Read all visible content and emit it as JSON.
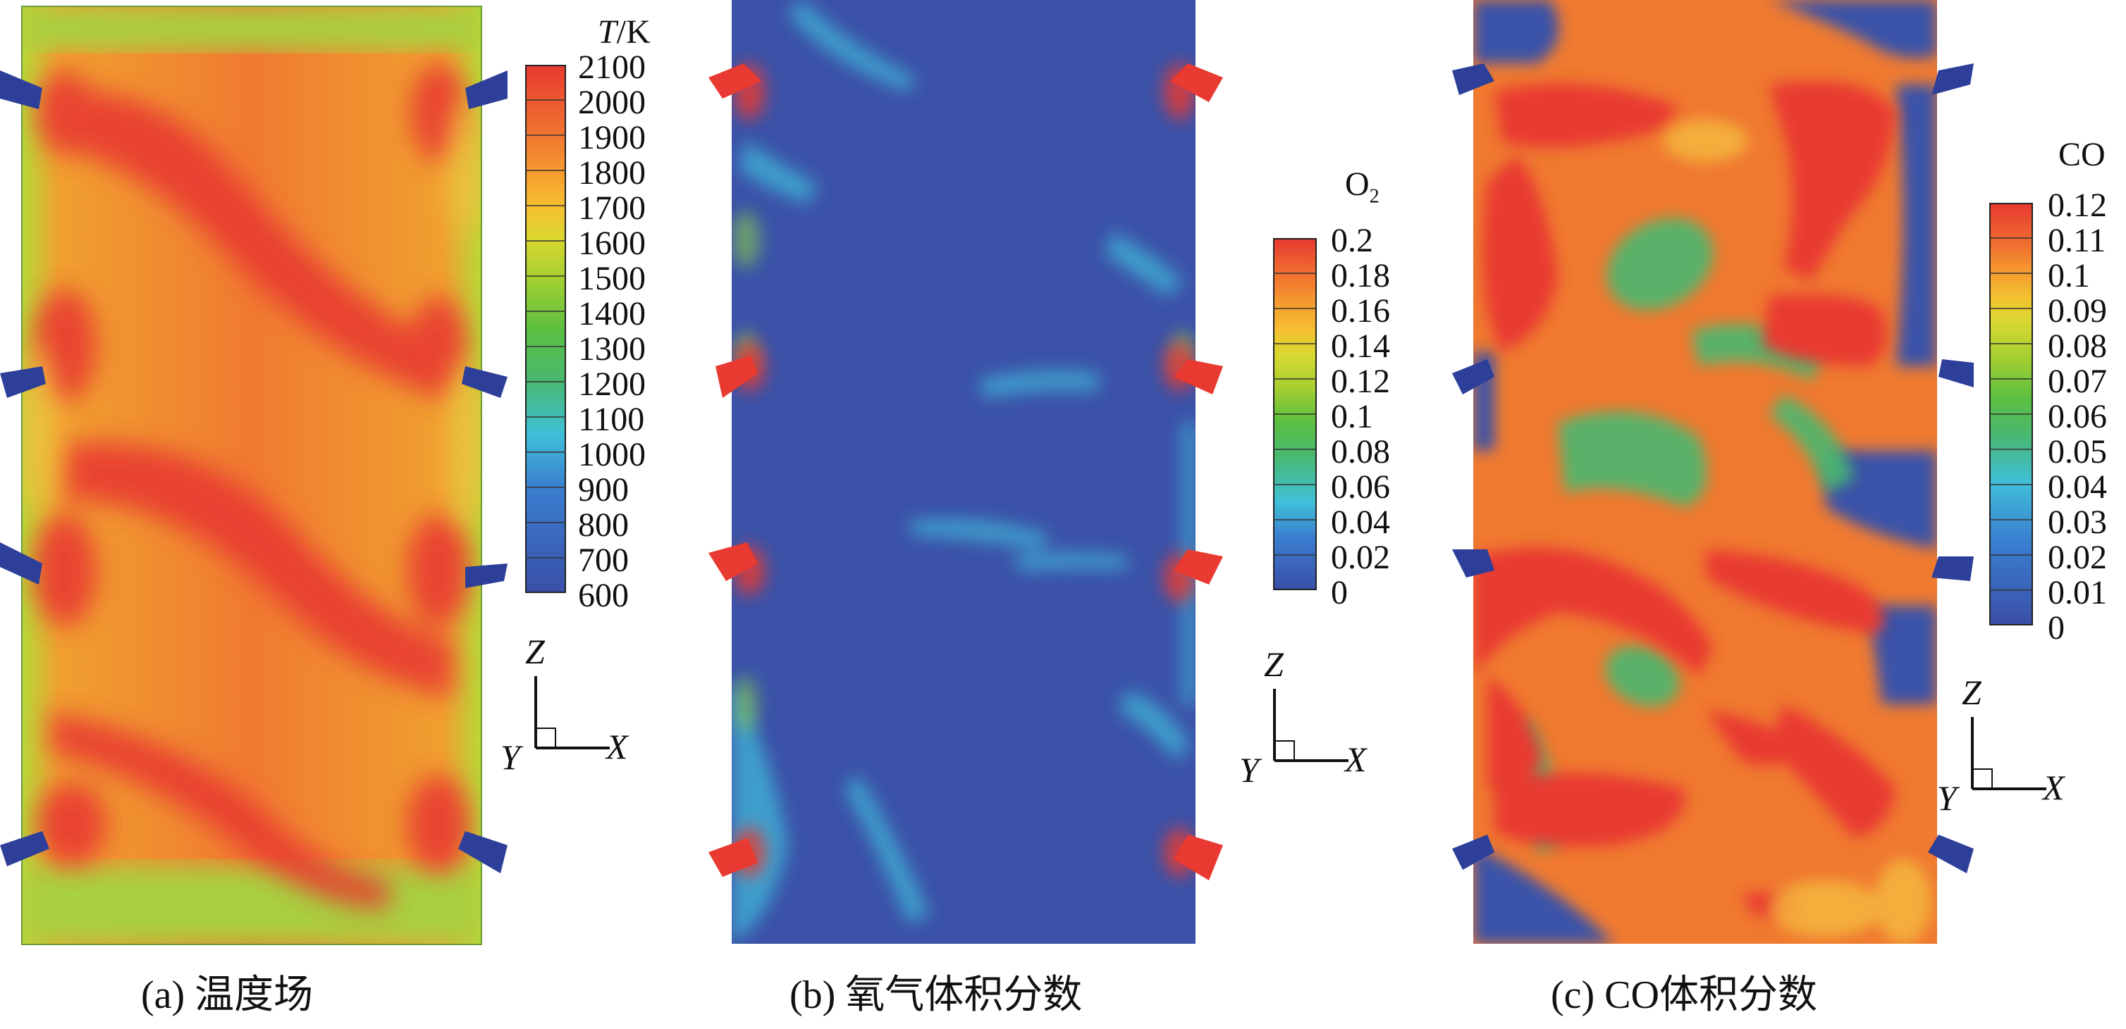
{
  "panels": [
    {
      "id": "a",
      "caption": "(a) 温度场",
      "colorbar": {
        "title_main": "T",
        "title_suffix": "/K",
        "ticks": [
          "2100",
          "2000",
          "1900",
          "1800",
          "1700",
          "1600",
          "1500",
          "1400",
          "1300",
          "1200",
          "1100",
          "1000",
          "900",
          "800",
          "700",
          "600"
        ]
      },
      "axes": {
        "z": "Z",
        "x": "X",
        "y": "Y"
      }
    },
    {
      "id": "b",
      "caption": "(b) 氧气体积分数",
      "colorbar": {
        "title_main": "O",
        "title_sub": "2",
        "ticks": [
          "0.2",
          "0.18",
          "0.16",
          "0.14",
          "0.12",
          "0.1",
          "0.08",
          "0.06",
          "0.04",
          "0.02",
          "0"
        ]
      },
      "axes": {
        "z": "Z",
        "x": "X",
        "y": "Y"
      }
    },
    {
      "id": "c",
      "caption": "(c) CO体积分数",
      "colorbar": {
        "title_main": "CO",
        "ticks": [
          "0.12",
          "0.11",
          "0.1",
          "0.09",
          "0.08",
          "0.07",
          "0.06",
          "0.05",
          "0.04",
          "0.03",
          "0.02",
          "0.01",
          "0"
        ]
      },
      "axes": {
        "z": "Z",
        "x": "X",
        "y": "Y"
      }
    }
  ],
  "colors": {
    "scale": [
      "#3a4fa8",
      "#3a7fd0",
      "#40c0d8",
      "#48b870",
      "#5cbf40",
      "#a8d030",
      "#e8e030",
      "#f5c030",
      "#f59a30",
      "#f07030",
      "#e83a30"
    ]
  }
}
